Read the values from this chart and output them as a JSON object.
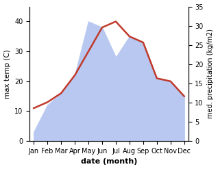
{
  "months": [
    "Jan",
    "Feb",
    "Mar",
    "Apr",
    "May",
    "Jun",
    "Jul",
    "Aug",
    "Sep",
    "Oct",
    "Nov",
    "Dec"
  ],
  "max_temp": [
    11,
    13,
    16,
    22,
    30,
    38,
    40,
    35,
    33,
    21,
    20,
    15
  ],
  "precipitation": [
    3,
    12,
    16,
    22,
    40,
    38,
    28,
    35,
    33,
    21,
    20,
    15
  ],
  "temp_color": "#c0392b",
  "precip_fill_color": "#b8c8f0",
  "temp_ylim": [
    0,
    45
  ],
  "precip_ylim": [
    0,
    35
  ],
  "temp_yticks": [
    0,
    10,
    20,
    30,
    40
  ],
  "precip_yticks": [
    0,
    5,
    10,
    15,
    20,
    25,
    30,
    35
  ],
  "xlabel": "date (month)",
  "ylabel_left": "max temp (C)",
  "ylabel_right": "med. precipitation (kg/m2)"
}
